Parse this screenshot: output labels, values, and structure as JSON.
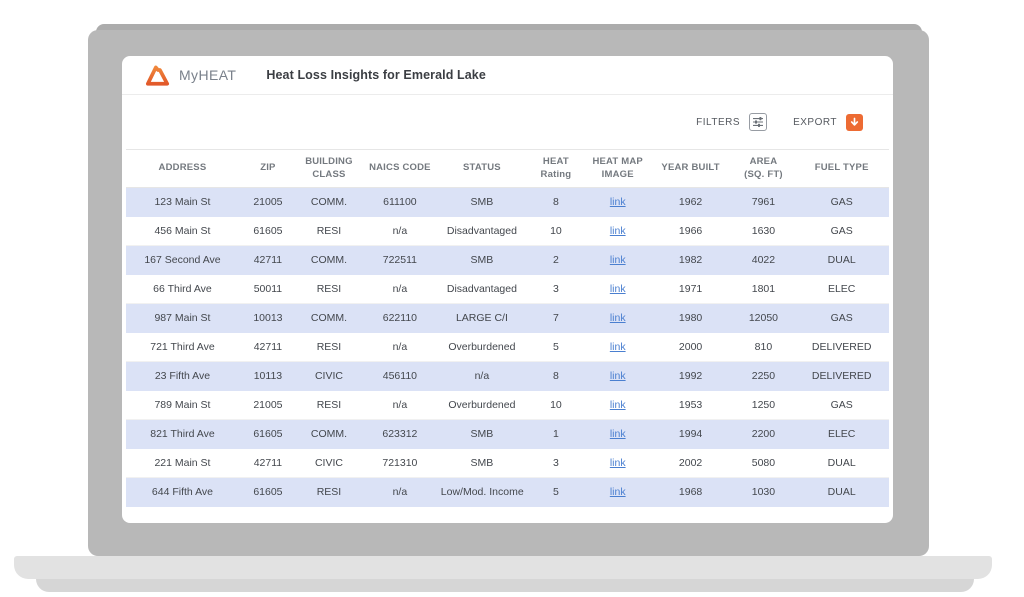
{
  "colors": {
    "accent_orange": "#ED6B33",
    "stripe_row": "#DBE2F6",
    "link_blue": "#4A7FD0",
    "laptop_gray": "#B8B8B8"
  },
  "app": {
    "brand": "MyHEAT",
    "logo_icon": "myheat-triangle-logo",
    "title": "Heat Loss Insights for Emerald Lake",
    "toolbar": {
      "filters_label": "FILTERS",
      "filters_icon": "sliders-icon",
      "export_label": "EXPORT",
      "export_icon": "download-icon"
    }
  },
  "table": {
    "columns": [
      {
        "key": "address",
        "label": [
          "ADDRESS"
        ]
      },
      {
        "key": "zip",
        "label": [
          "ZIP"
        ]
      },
      {
        "key": "building_class",
        "label": [
          "BUILDING",
          "CLASS"
        ]
      },
      {
        "key": "naics_code",
        "label": [
          "NAICS CODE"
        ]
      },
      {
        "key": "status",
        "label": [
          "STATUS"
        ]
      },
      {
        "key": "heat_rating",
        "label": [
          "HEAT",
          "Rating"
        ]
      },
      {
        "key": "heat_map_image",
        "label": [
          "HEAT MAP",
          "IMAGE"
        ]
      },
      {
        "key": "year_built",
        "label": [
          "YEAR BUILT"
        ]
      },
      {
        "key": "area",
        "label": [
          "AREA",
          "(SQ. FT)"
        ]
      },
      {
        "key": "fuel_type",
        "label": [
          "FUEL TYPE"
        ]
      }
    ],
    "link_cell_key": "heat_map_image",
    "rows": [
      [
        "123 Main St",
        "21005",
        "COMM.",
        "611100",
        "SMB",
        "8",
        "link",
        "1962",
        "7961",
        "GAS"
      ],
      [
        "456 Main St",
        "61605",
        "RESI",
        "n/a",
        "Disadvantaged",
        "10",
        "link",
        "1966",
        "1630",
        "GAS"
      ],
      [
        "167 Second Ave",
        "42711",
        "COMM.",
        "722511",
        "SMB",
        "2",
        "link",
        "1982",
        "4022",
        "DUAL"
      ],
      [
        "66 Third Ave",
        "50011",
        "RESI",
        "n/a",
        "Disadvantaged",
        "3",
        "link",
        "1971",
        "1801",
        "ELEC"
      ],
      [
        "987 Main St",
        "10013",
        "COMM.",
        "622110",
        "LARGE C/I",
        "7",
        "link",
        "1980",
        "12050",
        "GAS"
      ],
      [
        "721 Third Ave",
        "42711",
        "RESI",
        "n/a",
        "Overburdened",
        "5",
        "link",
        "2000",
        "810",
        "DELIVERED"
      ],
      [
        "23 Fifth Ave",
        "10113",
        "CIVIC",
        "456110",
        "n/a",
        "8",
        "link",
        "1992",
        "2250",
        "DELIVERED"
      ],
      [
        "789 Main St",
        "21005",
        "RESI",
        "n/a",
        "Overburdened",
        "10",
        "link",
        "1953",
        "1250",
        "GAS"
      ],
      [
        "821 Third Ave",
        "61605",
        "COMM.",
        "623312",
        "SMB",
        "1",
        "link",
        "1994",
        "2200",
        "ELEC"
      ],
      [
        "221 Main St",
        "42711",
        "CIVIC",
        "721310",
        "SMB",
        "3",
        "link",
        "2002",
        "5080",
        "DUAL"
      ],
      [
        "644 Fifth Ave",
        "61605",
        "RESI",
        "n/a",
        "Low/Mod. Income",
        "5",
        "link",
        "1968",
        "1030",
        "DUAL"
      ]
    ]
  }
}
